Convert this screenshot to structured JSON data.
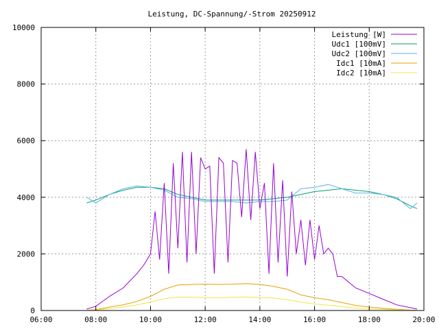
{
  "chart_data": {
    "type": "line",
    "title": "Leistung, DC-Spannung/-Strom 20250912",
    "xlabel": "",
    "ylabel": "",
    "x_ticks": [
      "06:00",
      "08:00",
      "10:00",
      "12:00",
      "14:00",
      "16:00",
      "18:00",
      "20:00"
    ],
    "y_ticks": [
      "0",
      "2000",
      "4000",
      "6000",
      "8000",
      "10000"
    ],
    "xlim": [
      "06:00",
      "20:00"
    ],
    "ylim": [
      0,
      10000
    ],
    "grid": true,
    "legend_position": "top-right",
    "series": [
      {
        "name": "Leistung [W]",
        "color": "#9400d3",
        "x": [
          "07:40",
          "08:00",
          "08:30",
          "09:00",
          "09:30",
          "09:45",
          "10:00",
          "10:10",
          "10:20",
          "10:30",
          "10:40",
          "10:50",
          "11:00",
          "11:10",
          "11:20",
          "11:30",
          "11:40",
          "11:50",
          "12:00",
          "12:10",
          "12:20",
          "12:30",
          "12:40",
          "12:50",
          "13:00",
          "13:10",
          "13:20",
          "13:30",
          "13:40",
          "13:50",
          "14:00",
          "14:10",
          "14:20",
          "14:30",
          "14:40",
          "14:50",
          "15:00",
          "15:10",
          "15:20",
          "15:30",
          "15:40",
          "15:50",
          "16:00",
          "16:10",
          "16:20",
          "16:30",
          "16:40",
          "16:50",
          "17:00",
          "17:30",
          "18:00",
          "18:30",
          "19:00",
          "19:30",
          "19:45"
        ],
        "values": [
          50,
          150,
          500,
          800,
          1300,
          1600,
          2000,
          3500,
          1800,
          4500,
          1300,
          5200,
          2200,
          5600,
          1700,
          5600,
          2000,
          5400,
          5000,
          5100,
          1300,
          5400,
          5200,
          1700,
          5300,
          5200,
          3300,
          5700,
          3200,
          5600,
          3600,
          4500,
          1300,
          5200,
          1700,
          4600,
          1200,
          4200,
          2000,
          3200,
          1600,
          3200,
          1800,
          3000,
          2000,
          2200,
          2000,
          1200,
          1200,
          800,
          600,
          400,
          200,
          100,
          50
        ]
      },
      {
        "name": "Udc1 [100mV]",
        "color": "#009e73",
        "x": [
          "07:40",
          "08:00",
          "08:30",
          "09:00",
          "09:30",
          "10:00",
          "10:30",
          "11:00",
          "11:30",
          "12:00",
          "12:30",
          "13:00",
          "13:30",
          "14:00",
          "14:30",
          "15:00",
          "15:30",
          "16:00",
          "16:30",
          "17:00",
          "17:30",
          "18:00",
          "18:30",
          "19:00",
          "19:30",
          "19:45"
        ],
        "values": [
          3800,
          3900,
          4100,
          4250,
          4350,
          4350,
          4300,
          4100,
          4000,
          3900,
          3900,
          3900,
          3900,
          3900,
          3950,
          4000,
          4100,
          4200,
          4250,
          4300,
          4250,
          4200,
          4100,
          3950,
          3700,
          3600
        ]
      },
      {
        "name": "Udc2 [100mV]",
        "color": "#56b4e9",
        "x": [
          "07:40",
          "08:00",
          "08:30",
          "09:00",
          "09:30",
          "10:00",
          "10:30",
          "11:00",
          "11:30",
          "12:00",
          "12:30",
          "13:00",
          "13:30",
          "14:00",
          "14:30",
          "15:00",
          "15:30",
          "16:00",
          "16:30",
          "17:00",
          "17:30",
          "18:00",
          "18:30",
          "19:00",
          "19:30",
          "19:45"
        ],
        "values": [
          4000,
          3800,
          4100,
          4300,
          4400,
          4350,
          4250,
          4000,
          3950,
          3850,
          3850,
          3850,
          3800,
          3850,
          3850,
          3900,
          4300,
          4350,
          4450,
          4300,
          4150,
          4150,
          4100,
          4000,
          3600,
          3800
        ]
      },
      {
        "name": "Idc1 [10mA]",
        "color": "#e69f00",
        "x": [
          "07:40",
          "08:00",
          "08:30",
          "09:00",
          "09:30",
          "10:00",
          "10:30",
          "11:00",
          "11:30",
          "12:00",
          "12:30",
          "13:00",
          "13:30",
          "14:00",
          "14:30",
          "15:00",
          "15:30",
          "16:00",
          "16:30",
          "17:00",
          "17:30",
          "18:00",
          "18:30",
          "19:00",
          "19:30",
          "19:45"
        ],
        "values": [
          10,
          30,
          120,
          200,
          320,
          500,
          750,
          900,
          920,
          930,
          920,
          930,
          950,
          920,
          850,
          750,
          550,
          450,
          380,
          280,
          180,
          120,
          80,
          40,
          15,
          10
        ]
      },
      {
        "name": "Idc2 [10mA]",
        "color": "#f0e442",
        "x": [
          "07:40",
          "08:00",
          "08:30",
          "09:00",
          "09:30",
          "10:00",
          "10:30",
          "11:00",
          "11:30",
          "12:00",
          "12:30",
          "13:00",
          "13:30",
          "14:00",
          "14:30",
          "15:00",
          "15:30",
          "16:00",
          "16:30",
          "17:00",
          "17:30",
          "18:00",
          "18:30",
          "19:00",
          "19:30",
          "19:45"
        ],
        "values": [
          5,
          20,
          70,
          120,
          200,
          300,
          420,
          470,
          470,
          460,
          450,
          470,
          480,
          460,
          440,
          380,
          300,
          230,
          190,
          140,
          90,
          60,
          40,
          20,
          10,
          5
        ]
      }
    ]
  }
}
